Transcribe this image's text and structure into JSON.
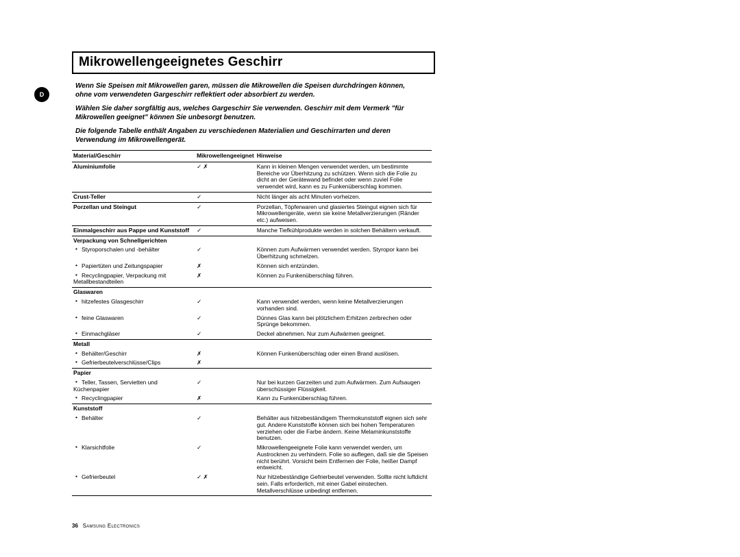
{
  "marker": "D",
  "title": "Mikrowellengeeignetes Geschirr",
  "intro": [
    "Wenn Sie Speisen mit Mikrowellen garen, müssen die Mikrowellen die Speisen durchdringen können, ohne vom verwendeten Gargeschirr reflektiert oder absorbiert zu werden.",
    "Wählen Sie daher sorgfältig aus, welches Gargeschirr Sie verwenden. Geschirr mit dem Vermerk \"für Mikrowellen geeignet\" können Sie unbesorgt benutzen.",
    "Die folgende Tabelle enthält Angaben zu verschiedenen Materialien und Geschirrarten und deren Verwendung im Mikrowellengerät."
  ],
  "headers": {
    "c1": "Material/Geschirr",
    "c2": "Mikrowellengeeignet",
    "c3": "Hinweise"
  },
  "symbols": {
    "yes": "✓",
    "no": "✗",
    "both": "✓ ✗"
  },
  "rows": [
    {
      "sep": false,
      "bold": true,
      "c1": "Aluminiumfolie",
      "c2": "both",
      "c3": "Kann in kleinen Mengen verwendet werden, um bestimmte Bereiche vor Überhitzung zu schützen. Wenn sich die Folie zu dicht an der Gerätewand befindet oder wenn zuviel Folie verwendet wird, kann es zu Funkenüberschlag kommen."
    },
    {
      "sep": true,
      "bold": true,
      "c1": "Crust-Teller",
      "c2": "yes",
      "c3": "Nicht länger als acht Minuten vorheizen."
    },
    {
      "sep": true,
      "bold": true,
      "c1": "Porzellan und Steingut",
      "c2": "yes",
      "c3": "Porzellan, Töpferwaren und glasiertes Steingut eignen sich für Mikrowellengeräte, wenn sie keine Metallverzierungen (Ränder etc.) aufweisen."
    },
    {
      "sep": true,
      "bold": true,
      "c1": "Einmalgeschirr aus Pappe und Kunststoff",
      "c2": "yes",
      "c3": "Manche Tiefkühlprodukte werden in solchen Behältern verkauft."
    },
    {
      "sep": true,
      "bold": true,
      "c1": "Verpackung von Schnellgerichten",
      "c2": "",
      "c3": ""
    },
    {
      "sep": false,
      "bold": false,
      "sub": true,
      "c1": "Styroporschalen und -behälter",
      "c2": "yes",
      "c3": "Können zum Aufwärmen verwendet werden. Styropor kann bei Überhitzung schmelzen."
    },
    {
      "sep": false,
      "bold": false,
      "sub": true,
      "c1": "Papiertüten und Zeitungspapier",
      "c2": "no",
      "c3": "Können sich entzünden."
    },
    {
      "sep": false,
      "bold": false,
      "sub": true,
      "c1": "Recyclingpapier, Verpackung mit Metallbestandteilen",
      "c2": "no",
      "c3": "Können zu Funkenüberschlag führen."
    },
    {
      "sep": true,
      "bold": true,
      "c1": "Glaswaren",
      "c2": "",
      "c3": ""
    },
    {
      "sep": false,
      "bold": false,
      "sub": true,
      "c1": "hitzefestes Glasgeschirr",
      "c2": "yes",
      "c3": "Kann verwendet werden, wenn keine Metallverzierungen vorhanden sind."
    },
    {
      "sep": false,
      "bold": false,
      "sub": true,
      "c1": "feine Glaswaren",
      "c2": "yes",
      "c3": "Dünnes Glas kann bei plötzlichem Erhitzen zerbrechen oder Sprünge bekommen."
    },
    {
      "sep": false,
      "bold": false,
      "sub": true,
      "c1": "Einmachgläser",
      "c2": "yes",
      "c3": "Deckel abnehmen. Nur zum Aufwärmen geeignet."
    },
    {
      "sep": true,
      "bold": true,
      "c1": "Metall",
      "c2": "",
      "c3": ""
    },
    {
      "sep": false,
      "bold": false,
      "sub": true,
      "c1": "Behälter/Geschirr",
      "c2": "no",
      "c3": "Können Funkenüberschlag oder einen Brand auslösen."
    },
    {
      "sep": false,
      "bold": false,
      "sub": true,
      "c1": "Gefrierbeutelverschlüsse/Clips",
      "c2": "no",
      "c3": ""
    },
    {
      "sep": true,
      "bold": true,
      "c1": "Papier",
      "c2": "",
      "c3": ""
    },
    {
      "sep": false,
      "bold": false,
      "sub": true,
      "c1": "Teller, Tassen, Servietten und Küchenpapier",
      "c2": "yes",
      "c3": "Nur bei kurzen Garzeiten und zum Aufwärmen. Zum Aufsaugen überschüssiger Flüssigkeit."
    },
    {
      "sep": false,
      "bold": false,
      "sub": true,
      "c1": "Recyclingpapier",
      "c2": "no",
      "c3": "Kann zu Funkenüberschlag führen."
    },
    {
      "sep": true,
      "bold": true,
      "c1": "Kunststoff",
      "c2": "",
      "c3": ""
    },
    {
      "sep": false,
      "bold": false,
      "sub": true,
      "c1": "Behälter",
      "c2": "yes",
      "c3": "Behälter aus hitzebeständigem Thermokunststoff eignen sich sehr gut. Andere Kunststoffe können sich bei hohen Temperaturen verziehen oder die Farbe ändern. Keine Melaminkunststoffe benutzen."
    },
    {
      "sep": false,
      "bold": false,
      "sub": true,
      "c1": "Klarsichtfolie",
      "c2": "yes",
      "c3": "Mikrowellengeeignete Folie kann verwendet werden, um Austrocknen zu verhindern. Folie so auflegen, daß sie die Speisen nicht berührt. Vorsicht beim Entfernen der Folie, heißer Dampf entweicht."
    },
    {
      "sep": false,
      "bold": false,
      "sub": true,
      "c1": "Gefrierbeutel",
      "c2": "both",
      "c3": "Nur hitzebeständige Gefrierbeutel verwenden. Sollte nicht luftdicht sein. Falls erforderlich, mit einer Gabel einstechen. Metallverschlüsse unbedingt entfernen."
    }
  ],
  "footer": {
    "page": "36",
    "company": "Samsung Electronics"
  }
}
